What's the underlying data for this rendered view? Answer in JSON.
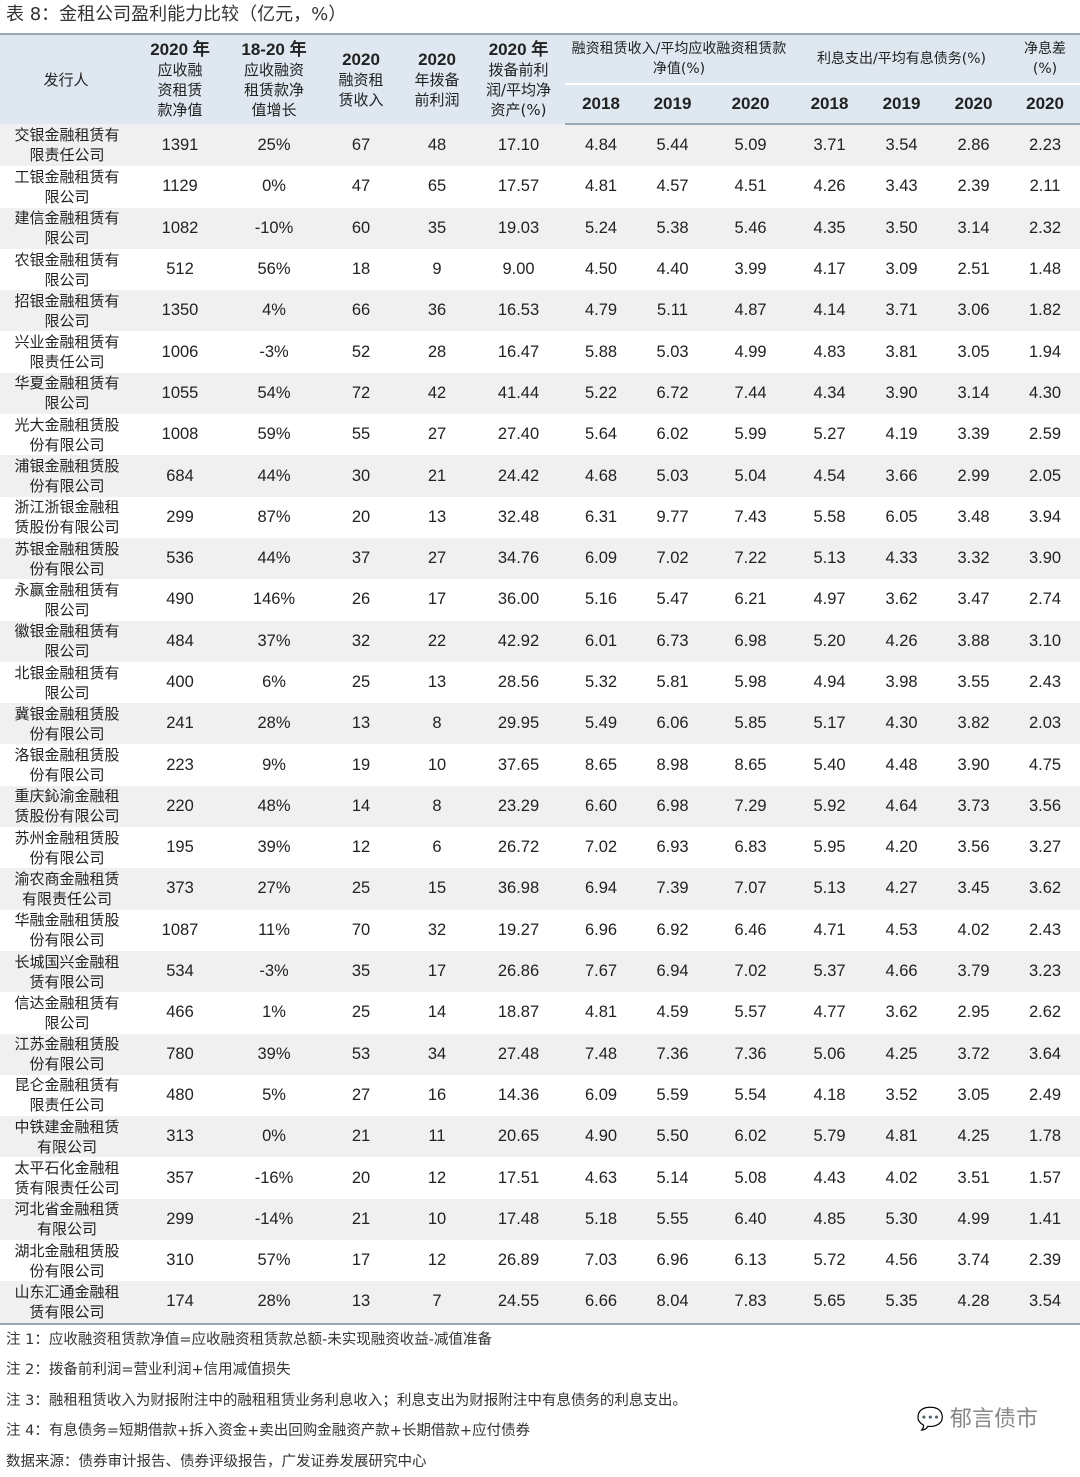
{
  "title": "表 8：金租公司盈利能力比较（亿元，%）",
  "header": {
    "issuer": "发行人",
    "c1": [
      "2020 年",
      "应收融",
      "资租赁",
      "款净值"
    ],
    "c2": [
      "18-20 年",
      "应收融资",
      "租赁款净",
      "值增长"
    ],
    "c3": [
      "2020",
      "融资租",
      "赁收入"
    ],
    "c4": [
      "2020",
      "年拨备",
      "前利润"
    ],
    "c5": [
      "2020 年",
      "拨备前利",
      "润/平均净",
      "资产(%)"
    ],
    "g1": "融资租赁收入/平均应收融资租赁款净值(%)",
    "g2": "利息支出/平均有息债务(%)",
    "g3": "净息差(%)",
    "years": [
      "2018",
      "2019",
      "2020",
      "2018",
      "2019",
      "2020",
      "2020"
    ]
  },
  "rows": [
    [
      "交银金融租赁有限责任公司",
      "1391",
      "25%",
      "67",
      "48",
      "17.10",
      "4.84",
      "5.44",
      "5.09",
      "3.71",
      "3.54",
      "2.86",
      "2.23"
    ],
    [
      "工银金融租赁有限公司",
      "1129",
      "0%",
      "47",
      "65",
      "17.57",
      "4.81",
      "4.57",
      "4.51",
      "4.26",
      "3.43",
      "2.39",
      "2.11"
    ],
    [
      "建信金融租赁有限公司",
      "1082",
      "-10%",
      "60",
      "35",
      "19.03",
      "5.24",
      "5.38",
      "5.46",
      "4.35",
      "3.50",
      "3.14",
      "2.32"
    ],
    [
      "农银金融租赁有限公司",
      "512",
      "56%",
      "18",
      "9",
      "9.00",
      "4.50",
      "4.40",
      "3.99",
      "4.17",
      "3.09",
      "2.51",
      "1.48"
    ],
    [
      "招银金融租赁有限公司",
      "1350",
      "4%",
      "66",
      "36",
      "16.53",
      "4.79",
      "5.11",
      "4.87",
      "4.14",
      "3.71",
      "3.06",
      "1.82"
    ],
    [
      "兴业金融租赁有限责任公司",
      "1006",
      "-3%",
      "52",
      "28",
      "16.47",
      "5.88",
      "5.03",
      "4.99",
      "4.83",
      "3.81",
      "3.05",
      "1.94"
    ],
    [
      "华夏金融租赁有限公司",
      "1055",
      "54%",
      "72",
      "42",
      "41.44",
      "5.22",
      "6.72",
      "7.44",
      "4.34",
      "3.90",
      "3.14",
      "4.30"
    ],
    [
      "光大金融租赁股份有限公司",
      "1008",
      "59%",
      "55",
      "27",
      "27.40",
      "5.64",
      "6.02",
      "5.99",
      "5.27",
      "4.19",
      "3.39",
      "2.59"
    ],
    [
      "浦银金融租赁股份有限公司",
      "684",
      "44%",
      "30",
      "21",
      "24.42",
      "4.68",
      "5.03",
      "5.04",
      "4.54",
      "3.66",
      "2.99",
      "2.05"
    ],
    [
      "浙江浙银金融租赁股份有限公司",
      "299",
      "87%",
      "20",
      "13",
      "32.48",
      "6.31",
      "9.77",
      "7.43",
      "5.58",
      "6.05",
      "3.48",
      "3.94"
    ],
    [
      "苏银金融租赁股份有限公司",
      "536",
      "44%",
      "37",
      "27",
      "34.76",
      "6.09",
      "7.02",
      "7.22",
      "5.13",
      "4.33",
      "3.32",
      "3.90"
    ],
    [
      "永赢金融租赁有限公司",
      "490",
      "146%",
      "26",
      "17",
      "36.00",
      "5.16",
      "5.47",
      "6.21",
      "4.97",
      "3.62",
      "3.47",
      "2.74"
    ],
    [
      "徽银金融租赁有限公司",
      "484",
      "37%",
      "32",
      "22",
      "42.92",
      "6.01",
      "6.73",
      "6.98",
      "5.20",
      "4.26",
      "3.88",
      "3.10"
    ],
    [
      "北银金融租赁有限公司",
      "400",
      "6%",
      "25",
      "13",
      "28.56",
      "5.32",
      "5.81",
      "5.98",
      "4.94",
      "3.98",
      "3.55",
      "2.43"
    ],
    [
      "冀银金融租赁股份有限公司",
      "241",
      "28%",
      "13",
      "8",
      "29.95",
      "5.49",
      "6.06",
      "5.85",
      "5.17",
      "4.30",
      "3.82",
      "2.03"
    ],
    [
      "洛银金融租赁股份有限公司",
      "223",
      "9%",
      "19",
      "10",
      "37.65",
      "8.65",
      "8.98",
      "8.65",
      "5.40",
      "4.48",
      "3.90",
      "4.75"
    ],
    [
      "重庆鈊渝金融租赁股份有限公司",
      "220",
      "48%",
      "14",
      "8",
      "23.29",
      "6.60",
      "6.98",
      "7.29",
      "5.92",
      "4.64",
      "3.73",
      "3.56"
    ],
    [
      "苏州金融租赁股份有限公司",
      "195",
      "39%",
      "12",
      "6",
      "26.72",
      "7.02",
      "6.93",
      "6.83",
      "5.95",
      "4.20",
      "3.56",
      "3.27"
    ],
    [
      "渝农商金融租赁有限责任公司",
      "373",
      "27%",
      "25",
      "15",
      "36.98",
      "6.94",
      "7.39",
      "7.07",
      "5.13",
      "4.27",
      "3.45",
      "3.62"
    ],
    [
      "华融金融租赁股份有限公司",
      "1087",
      "11%",
      "70",
      "32",
      "19.27",
      "6.96",
      "6.92",
      "6.46",
      "4.71",
      "4.53",
      "4.02",
      "2.43"
    ],
    [
      "长城国兴金融租赁有限公司",
      "534",
      "-3%",
      "35",
      "17",
      "26.86",
      "7.67",
      "6.94",
      "7.02",
      "5.37",
      "4.66",
      "3.79",
      "3.23"
    ],
    [
      "信达金融租赁有限公司",
      "466",
      "1%",
      "25",
      "14",
      "18.87",
      "4.81",
      "4.59",
      "5.57",
      "4.77",
      "3.62",
      "2.95",
      "2.62"
    ],
    [
      "江苏金融租赁股份有限公司",
      "780",
      "39%",
      "53",
      "34",
      "27.48",
      "7.48",
      "7.36",
      "7.36",
      "5.06",
      "4.25",
      "3.72",
      "3.64"
    ],
    [
      "昆仑金融租赁有限责任公司",
      "480",
      "5%",
      "27",
      "16",
      "14.36",
      "6.09",
      "5.59",
      "5.54",
      "4.18",
      "3.52",
      "3.05",
      "2.49"
    ],
    [
      "中铁建金融租赁有限公司",
      "313",
      "0%",
      "21",
      "11",
      "20.65",
      "4.90",
      "5.50",
      "6.02",
      "5.79",
      "4.81",
      "4.25",
      "1.78"
    ],
    [
      "太平石化金融租赁有限责任公司",
      "357",
      "-16%",
      "20",
      "12",
      "17.51",
      "4.63",
      "5.14",
      "5.08",
      "4.43",
      "4.02",
      "3.51",
      "1.57"
    ],
    [
      "河北省金融租赁有限公司",
      "299",
      "-14%",
      "21",
      "10",
      "17.48",
      "5.18",
      "5.55",
      "6.40",
      "4.85",
      "5.30",
      "4.99",
      "1.41"
    ],
    [
      "湖北金融租赁股份有限公司",
      "310",
      "57%",
      "17",
      "12",
      "26.89",
      "7.03",
      "6.96",
      "6.13",
      "5.72",
      "4.56",
      "3.74",
      "2.39"
    ],
    [
      "山东汇通金融租赁有限公司",
      "174",
      "28%",
      "13",
      "7",
      "24.55",
      "6.66",
      "8.04",
      "7.83",
      "5.65",
      "5.35",
      "4.28",
      "3.54"
    ]
  ],
  "notes": [
    "注 1：应收融资租赁款净值=应收融资租赁款总额-未实现融资收益-减值准备",
    "注 2：拨备前利润=营业利润+信用减值损失",
    "注 3：融租租赁收入为财报附注中的融租租赁业务利息收入；利息支出为财报附注中有息债务的利息支出。",
    "注 4：有息债务=短期借款+拆入资金+卖出回购金融资产款+长期借款+应付债券",
    "数据来源：债券审计报告、债券评级报告，广发证券发展研究中心"
  ],
  "watermark": "郁言债市"
}
